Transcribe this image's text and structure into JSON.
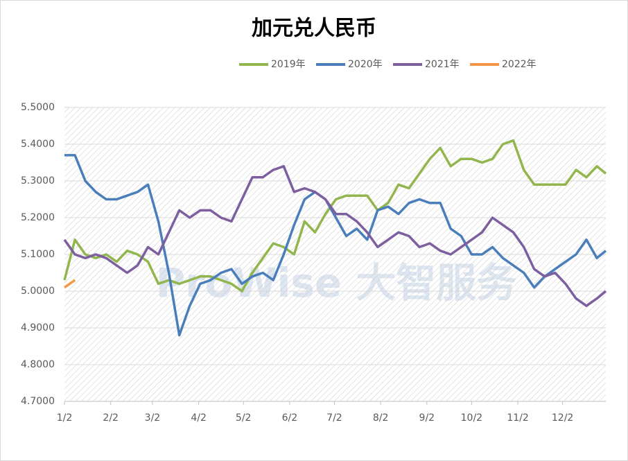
{
  "chart_data": {
    "type": "line",
    "title": "加元兑人民币",
    "watermark": "ProWise 大智服务",
    "x": [
      0,
      7,
      14,
      21,
      28,
      35,
      42,
      49,
      56,
      63,
      70,
      77,
      84,
      91,
      98,
      105,
      112,
      119,
      126,
      133,
      140,
      147,
      154,
      161,
      168,
      175,
      182,
      189,
      196,
      203,
      210,
      217,
      224,
      231,
      238,
      245,
      252,
      259,
      266,
      273,
      280,
      287,
      294,
      301,
      308,
      315,
      322,
      329,
      336,
      343,
      350,
      357,
      363
    ],
    "xlim": [
      0,
      363
    ],
    "xticks": [
      {
        "value": 0,
        "label": "1/2"
      },
      {
        "value": 31,
        "label": "2/2"
      },
      {
        "value": 59,
        "label": "3/2"
      },
      {
        "value": 90,
        "label": "4/2"
      },
      {
        "value": 120,
        "label": "5/2"
      },
      {
        "value": 151,
        "label": "6/2"
      },
      {
        "value": 181,
        "label": "7/2"
      },
      {
        "value": 212,
        "label": "8/2"
      },
      {
        "value": 243,
        "label": "9/2"
      },
      {
        "value": 273,
        "label": "10/2"
      },
      {
        "value": 304,
        "label": "11/2"
      },
      {
        "value": 334,
        "label": "12/2"
      }
    ],
    "ylim": [
      4.7,
      5.5
    ],
    "yticks": [
      {
        "value": 4.7,
        "label": "4.7000"
      },
      {
        "value": 4.8,
        "label": "4.8000"
      },
      {
        "value": 4.9,
        "label": "4.9000"
      },
      {
        "value": 5.0,
        "label": "5.0000"
      },
      {
        "value": 5.1,
        "label": "5.1000"
      },
      {
        "value": 5.2,
        "label": "5.2000"
      },
      {
        "value": 5.3,
        "label": "5.3000"
      },
      {
        "value": 5.4,
        "label": "5.4000"
      },
      {
        "value": 5.5,
        "label": "5.5000"
      }
    ],
    "grid": true,
    "series": [
      {
        "name": "2019年",
        "color": "#92b64e",
        "values": [
          5.03,
          5.14,
          5.1,
          5.09,
          5.1,
          5.08,
          5.11,
          5.1,
          5.08,
          5.02,
          5.03,
          5.02,
          5.03,
          5.04,
          5.04,
          5.03,
          5.02,
          5.0,
          5.05,
          5.09,
          5.13,
          5.12,
          5.1,
          5.19,
          5.16,
          5.21,
          5.25,
          5.26,
          5.26,
          5.26,
          5.22,
          5.24,
          5.29,
          5.28,
          5.32,
          5.36,
          5.39,
          5.34,
          5.36,
          5.36,
          5.35,
          5.36,
          5.4,
          5.41,
          5.33,
          5.29,
          5.29,
          5.29,
          5.29,
          5.33,
          5.31,
          5.34,
          5.32
        ]
      },
      {
        "name": "2020年",
        "color": "#4a7ebb",
        "values": [
          5.37,
          5.37,
          5.3,
          5.27,
          5.25,
          5.25,
          5.26,
          5.27,
          5.29,
          5.19,
          5.05,
          4.88,
          4.96,
          5.02,
          5.03,
          5.05,
          5.06,
          5.02,
          5.04,
          5.05,
          5.03,
          5.1,
          5.18,
          5.25,
          5.27,
          5.25,
          5.2,
          5.15,
          5.17,
          5.14,
          5.22,
          5.23,
          5.21,
          5.24,
          5.25,
          5.24,
          5.24,
          5.17,
          5.15,
          5.1,
          5.1,
          5.12,
          5.09,
          5.07,
          5.05,
          5.01,
          5.04,
          5.06,
          5.08,
          5.1,
          5.14,
          5.09,
          5.11
        ]
      },
      {
        "name": "2021年",
        "color": "#7d5fa0",
        "values": [
          5.14,
          5.1,
          5.09,
          5.1,
          5.09,
          5.07,
          5.05,
          5.07,
          5.12,
          5.1,
          5.16,
          5.22,
          5.2,
          5.22,
          5.22,
          5.2,
          5.19,
          5.25,
          5.31,
          5.31,
          5.33,
          5.34,
          5.27,
          5.28,
          5.27,
          5.25,
          5.21,
          5.21,
          5.19,
          5.16,
          5.12,
          5.14,
          5.16,
          5.15,
          5.12,
          5.13,
          5.11,
          5.1,
          5.12,
          5.14,
          5.16,
          5.2,
          5.18,
          5.16,
          5.12,
          5.06,
          5.04,
          5.05,
          5.02,
          4.98,
          4.96,
          4.98,
          5.0
        ]
      },
      {
        "name": "2022年",
        "color": "#f79646",
        "values": [
          5.01,
          5.03,
          null,
          null,
          null,
          null,
          null,
          null,
          null,
          null,
          null,
          null,
          null,
          null,
          null,
          null,
          null,
          null,
          null,
          null,
          null,
          null,
          null,
          null,
          null,
          null,
          null,
          null,
          null,
          null,
          null,
          null,
          null,
          null,
          null,
          null,
          null,
          null,
          null,
          null,
          null,
          null,
          null,
          null,
          null,
          null,
          null,
          null,
          null,
          null,
          null,
          null,
          null
        ]
      }
    ]
  }
}
